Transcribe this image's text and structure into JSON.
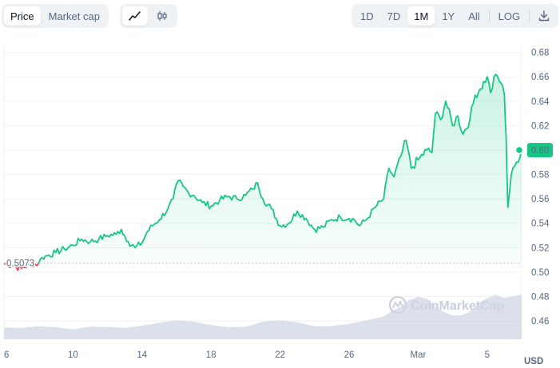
{
  "toolbar": {
    "metric_tabs": [
      {
        "label": "Price",
        "active": true
      },
      {
        "label": "Market cap",
        "active": false
      }
    ],
    "chart_type_icons": [
      {
        "icon": "line-chart-icon",
        "active": true
      },
      {
        "icon": "candlestick-icon",
        "active": false
      }
    ],
    "ranges": [
      {
        "label": "1D",
        "active": false
      },
      {
        "label": "7D",
        "active": false
      },
      {
        "label": "1M",
        "active": true
      },
      {
        "label": "1Y",
        "active": false
      },
      {
        "label": "All",
        "active": false
      }
    ],
    "log_label": "LOG",
    "download_icon": "download-icon"
  },
  "watermark": "CoinMarketCap",
  "colors": {
    "line": "#16c784",
    "below_line": "#ea3943",
    "volume": "#cfd6e4",
    "grid": "#eff2f5"
  },
  "chart_data": {
    "type": "line",
    "currency_label": "USD",
    "baseline": {
      "value": 0.5073,
      "label": "0.5073"
    },
    "current": {
      "value": 0.6,
      "label": "0.60"
    },
    "ylim": [
      0.445,
      0.685
    ],
    "y_ticks": [
      "0.46",
      "0.48",
      "0.50",
      "0.52",
      "0.54",
      "0.56",
      "0.58",
      "0.60",
      "0.62",
      "0.64",
      "0.66",
      "0.68"
    ],
    "xlim": [
      6,
      38
    ],
    "x_ticks": [
      {
        "day": 6,
        "label": "6"
      },
      {
        "day": 10,
        "label": "10"
      },
      {
        "day": 14,
        "label": "14"
      },
      {
        "day": 18,
        "label": "18"
      },
      {
        "day": 22,
        "label": "22"
      },
      {
        "day": 26,
        "label": "26"
      },
      {
        "day": 30,
        "label": "Mar"
      },
      {
        "day": 34,
        "label": "5"
      }
    ],
    "price_series": {
      "x": [
        6.0,
        6.5,
        7.0,
        7.5,
        8.0,
        8.2,
        8.6,
        9.0,
        9.5,
        10.0,
        10.5,
        11.0,
        11.5,
        12.0,
        12.5,
        12.8,
        13.2,
        13.6,
        14.0,
        14.3,
        14.6,
        15.0,
        15.5,
        15.8,
        16.1,
        16.4,
        16.7,
        17.0,
        17.5,
        18.0,
        18.5,
        19.0,
        19.5,
        20.0,
        20.4,
        20.7,
        21.0,
        21.5,
        22.0,
        22.5,
        23.0,
        23.5,
        24.0,
        24.5,
        25.0,
        25.5,
        26.0,
        26.3,
        26.6,
        27.0,
        27.5,
        28.0,
        28.3,
        28.6,
        29.0,
        29.3,
        29.6,
        30.0,
        30.5,
        30.8,
        31.0,
        31.3,
        31.6,
        32.0,
        32.3,
        32.6,
        33.0,
        33.3,
        33.6,
        34.0,
        34.2,
        34.5,
        34.8,
        35.0,
        35.1,
        35.2,
        35.4,
        35.7,
        36.0
      ],
      "y": [
        0.507,
        0.505,
        0.503,
        0.506,
        0.507,
        0.512,
        0.514,
        0.516,
        0.519,
        0.522,
        0.527,
        0.525,
        0.527,
        0.53,
        0.531,
        0.535,
        0.525,
        0.52,
        0.524,
        0.533,
        0.538,
        0.543,
        0.552,
        0.56,
        0.575,
        0.57,
        0.565,
        0.563,
        0.557,
        0.554,
        0.559,
        0.562,
        0.56,
        0.563,
        0.568,
        0.573,
        0.56,
        0.552,
        0.538,
        0.54,
        0.55,
        0.544,
        0.535,
        0.537,
        0.543,
        0.545,
        0.544,
        0.543,
        0.538,
        0.543,
        0.553,
        0.56,
        0.585,
        0.578,
        0.595,
        0.608,
        0.585,
        0.592,
        0.6,
        0.598,
        0.63,
        0.625,
        0.64,
        0.62,
        0.628,
        0.613,
        0.625,
        0.645,
        0.65,
        0.66,
        0.647,
        0.662,
        0.655,
        0.645,
        0.61,
        0.553,
        0.58,
        0.59,
        0.6
      ]
    },
    "volume_series": {
      "x": [
        6.0,
        7.0,
        8.0,
        9.0,
        10.0,
        11.0,
        12.0,
        13.0,
        14.0,
        15.0,
        16.0,
        17.0,
        18.0,
        19.0,
        20.0,
        21.0,
        22.0,
        23.0,
        24.0,
        25.0,
        26.0,
        27.0,
        28.0,
        28.5,
        29.0,
        29.5,
        30.0,
        30.5,
        31.0,
        31.5,
        32.0,
        32.5,
        33.0,
        33.5,
        34.0,
        34.5,
        35.0,
        35.5,
        36.0
      ],
      "y": [
        0.455,
        0.454,
        0.456,
        0.4545,
        0.4535,
        0.455,
        0.4555,
        0.454,
        0.4565,
        0.458,
        0.461,
        0.459,
        0.457,
        0.4545,
        0.4555,
        0.459,
        0.461,
        0.4585,
        0.456,
        0.4555,
        0.458,
        0.46,
        0.464,
        0.468,
        0.472,
        0.477,
        0.48,
        0.478,
        0.472,
        0.467,
        0.465,
        0.464,
        0.468,
        0.474,
        0.479,
        0.481,
        0.479,
        0.48,
        0.482
      ]
    }
  }
}
